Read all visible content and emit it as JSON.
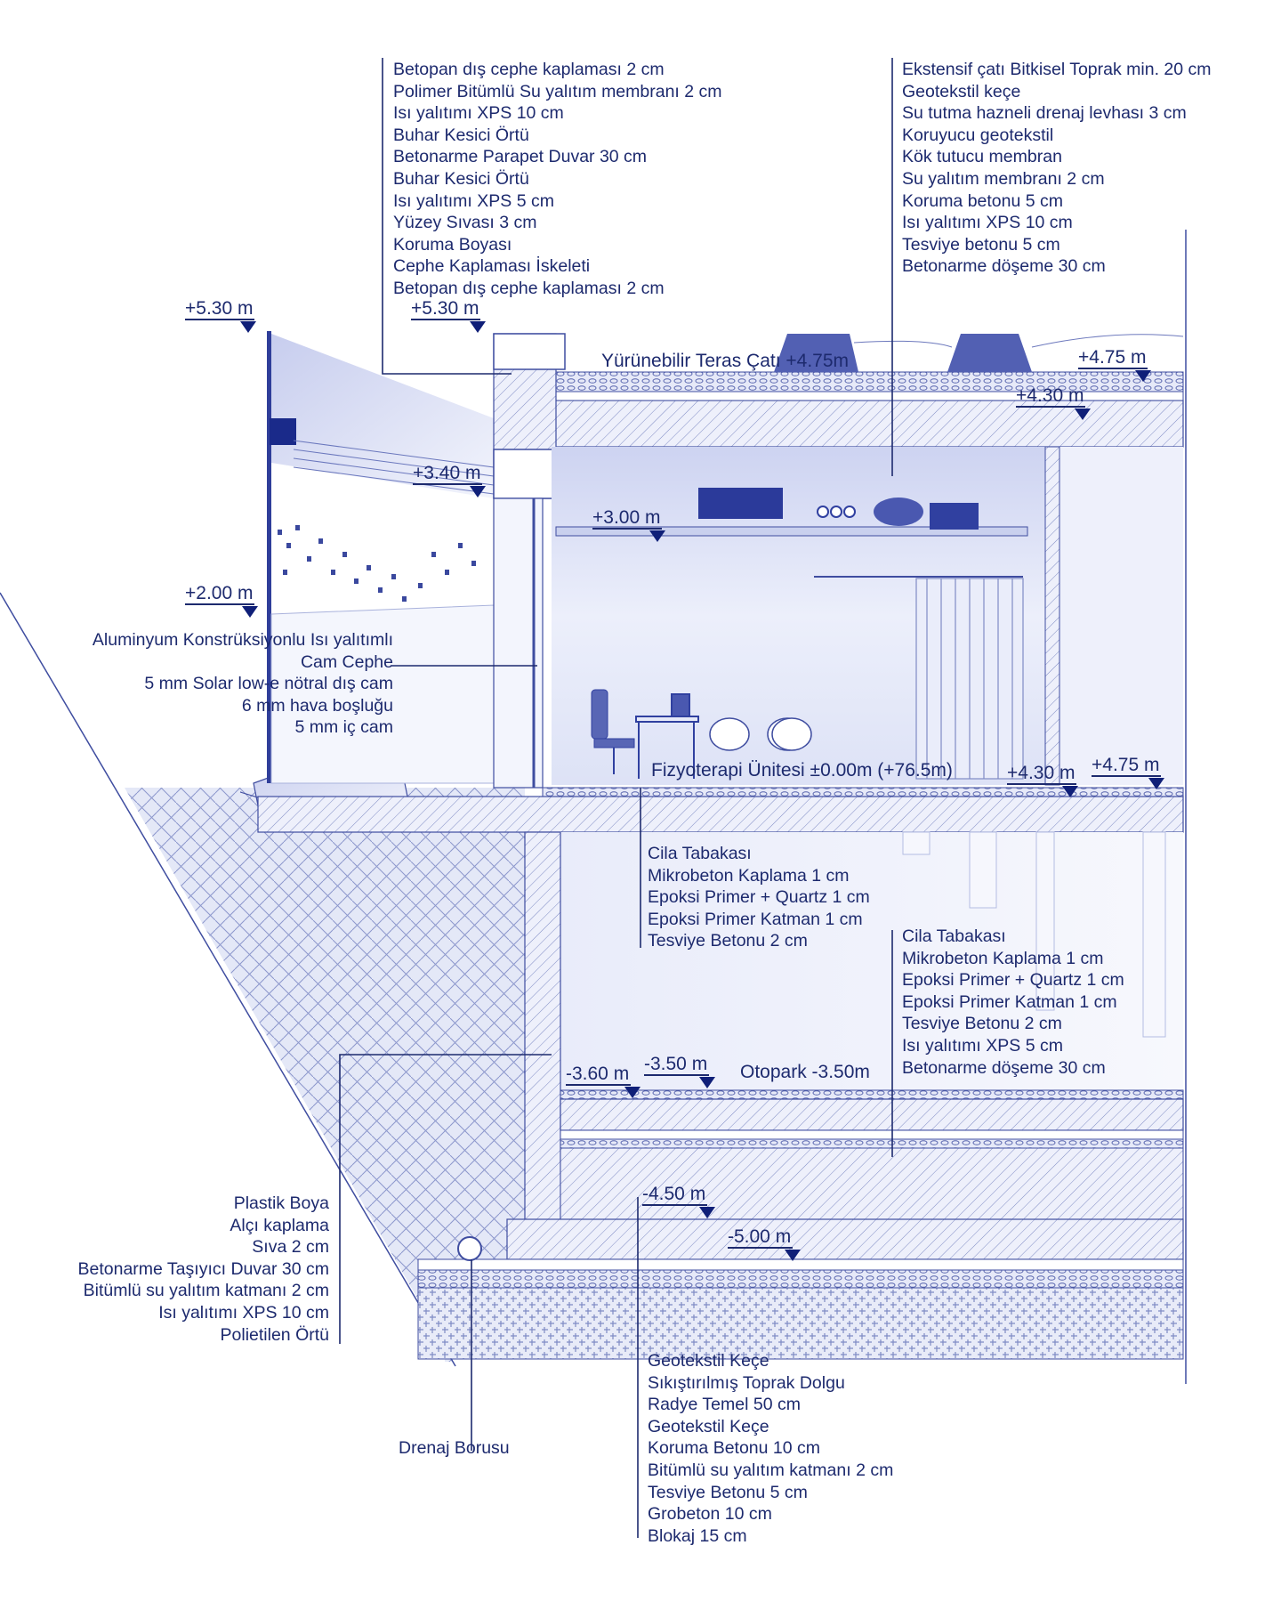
{
  "palette": {
    "ink": "#1d2a6e",
    "deep": "#0f1f78",
    "wash": "#dfe3f6",
    "paper": "#ffffff"
  },
  "notes": {
    "parapet": [
      "Betopan dış cephe kaplaması 2 cm",
      "Polimer Bitümlü Su yalıtım membranı 2 cm",
      "Isı yalıtımı XPS 10 cm",
      "Buhar Kesici Örtü",
      "Betonarme Parapet Duvar 30 cm",
      "Buhar Kesici Örtü",
      "Isı yalıtımı XPS 5 cm",
      "Yüzey Sıvası 3 cm",
      "Koruma Boyası",
      "Cephe Kaplaması İskeleti",
      "Betopan dış cephe kaplaması 2 cm"
    ],
    "roof": [
      "Ekstensif çatı Bitkisel Toprak min. 20 cm",
      "Geotekstil keçe",
      "Su tutma hazneli drenaj levhası 3 cm",
      "Koruyucu geotekstil",
      "Kök tutucu membran",
      "Su yalıtım membranı 2 cm",
      "Koruma betonu 5 cm",
      "Isı yalıtımı XPS 10 cm",
      "Tesviye betonu 5 cm",
      "Betonarme döşeme 30 cm"
    ],
    "facade": [
      "Aluminyum Konstrüksiyonlu Isı yalıtımlı",
      "Cam Cephe",
      "5 mm Solar low-e nötral dış cam",
      "6 mm hava boşluğu",
      "5 mm iç cam"
    ],
    "floor_ground": [
      "Cila Tabakası",
      "Mikrobeton Kaplama 1 cm",
      "Epoksi Primer + Quartz 1 cm",
      "Epoksi Primer Katman 1 cm",
      "Tesviye Betonu 2 cm"
    ],
    "floor_parking": [
      "Cila Tabakası",
      "Mikrobeton Kaplama 1 cm",
      "Epoksi Primer + Quartz 1 cm",
      "Epoksi Primer Katman 1 cm",
      "Tesviye Betonu 2 cm",
      "Isı yalıtımı XPS 5 cm",
      "Betonarme döşeme 30 cm"
    ],
    "retaining_wall": [
      "Plastik Boya",
      "Alçı kaplama",
      "Sıva 2 cm",
      "Betonarme Taşıyıcı Duvar 30 cm",
      "Bitümlü su yalıtım katmanı 2 cm",
      "Isı yalıtımı XPS 10 cm",
      "Polietilen Örtü"
    ],
    "drain": [
      "Drenaj Borusu"
    ],
    "foundation": [
      "Geotekstil Keçe",
      "Sıkıştırılmış Toprak Dolgu",
      "Radye Temel 50 cm",
      "Geotekstil Keçe",
      "Koruma Betonu 10 cm",
      "Bitümlü su yalıtım katmanı 2 cm",
      "Tesviye Betonu 5 cm",
      "Grobeton 10 cm",
      "Blokaj 15 cm"
    ]
  },
  "titles": {
    "terrace": "Yürünebilir Teras Çatı +4.75m",
    "physio": "Fizyoterapi Ünitesi ±0.00m (+76.5m)",
    "parking": "Otopark -3.50m"
  },
  "levels": {
    "l530a": "+5.30 m",
    "l530b": "+5.30 m",
    "l475a": "+4.75 m",
    "l430a": "+4.30 m",
    "l340": "+3.40 m",
    "l300": "+3.00 m",
    "l200": "+2.00 m",
    "l430b": "+4.30 m",
    "l475b": "+4.75 m",
    "l360": "-3.60 m",
    "l350": "-3.50 m",
    "l450": "-4.50 m",
    "l500": "-5.00 m"
  }
}
